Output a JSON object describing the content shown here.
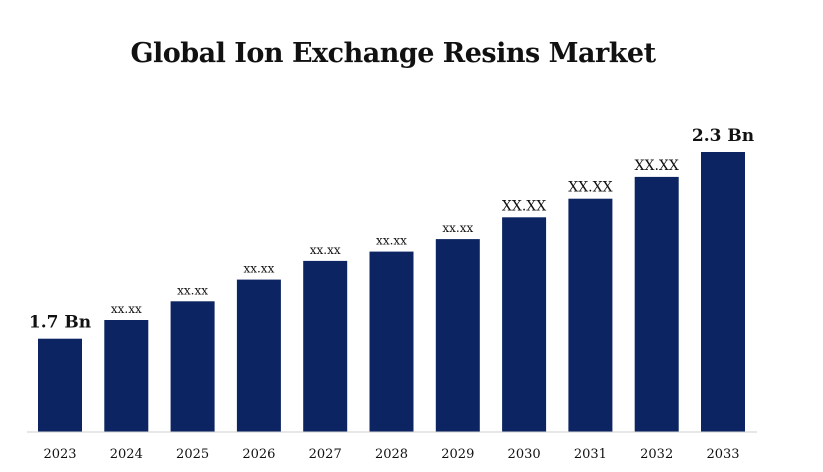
{
  "chart_data": {
    "type": "bar",
    "title": "Global Ion Exchange Resins Market",
    "xlabel": "",
    "ylabel": "",
    "categories": [
      "2023",
      "2024",
      "2025",
      "2026",
      "2027",
      "2028",
      "2029",
      "2030",
      "2031",
      "2032",
      "2033"
    ],
    "values": [
      1.7,
      1.76,
      1.82,
      1.89,
      1.95,
      1.98,
      2.02,
      2.09,
      2.15,
      2.22,
      2.3
    ],
    "data_labels": [
      "1.7 Bn",
      "xx.xx",
      "xx.xx",
      "xx.xx",
      "xx.xx",
      "xx.xx",
      "xx.xx",
      "XX.XX",
      "XX.XX",
      "XX.XX",
      "2.3 Bn"
    ],
    "ylim": [
      1.4,
      2.4
    ],
    "grid": false,
    "legend": "none",
    "bar_color": "#0c2461"
  }
}
